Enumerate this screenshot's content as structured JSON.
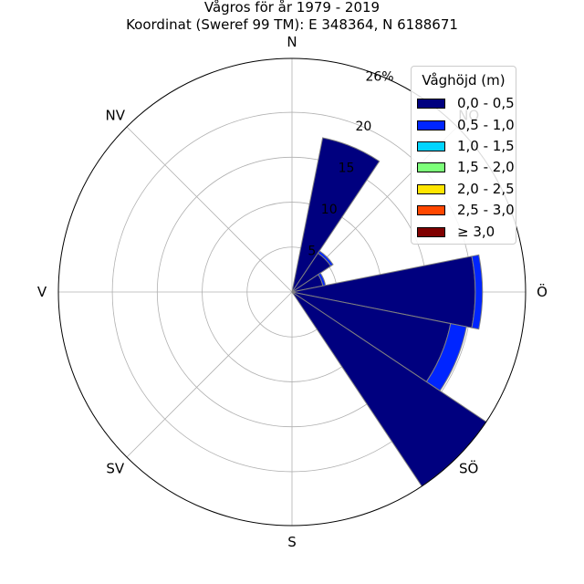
{
  "title": "Vågros för år 1979 - 2019",
  "subtitle": "Koordinat (Sweref 99 TM): E 348364, N 6188671",
  "legend": {
    "title": "Våghöjd (m)",
    "items": [
      {
        "label": "0,0 - 0,5",
        "color": "#00007f"
      },
      {
        "label": "0,5 - 1,0",
        "color": "#0025ff"
      },
      {
        "label": "1,0 - 1,5",
        "color": "#00d4ff"
      },
      {
        "label": "1,5 - 2,0",
        "color": "#7dff7a"
      },
      {
        "label": "2,0 - 2,5",
        "color": "#ffe500"
      },
      {
        "label": "2,5 - 3,0",
        "color": "#ff4700"
      },
      {
        "label": "≥ 3,0",
        "color": "#7f0000"
      }
    ]
  },
  "chart_data": {
    "type": "polar-bar",
    "title": "Vågros för år 1979 - 2019",
    "subtitle": "Koordinat (Sweref 99 TM): E 348364, N 6188671",
    "rmax": 26,
    "rticks": [
      5,
      10,
      15,
      20
    ],
    "rmax_label": "26%",
    "direction_labels": [
      "N",
      "NO",
      "Ö",
      "SÖ",
      "S",
      "SV",
      "V",
      "NV"
    ],
    "sector_width_deg": 22.5,
    "series_names": [
      "0,0 - 0,5",
      "0,5 - 1,0",
      "1,0 - 1,5",
      "1,5 - 2,0",
      "2,0 - 2,5",
      "2,5 - 3,0",
      "≥ 3,0"
    ],
    "sectors": [
      {
        "direction_deg": 22.5,
        "values": [
          17.5,
          0,
          0,
          0,
          0,
          0,
          0
        ]
      },
      {
        "direction_deg": 45,
        "values": [
          5.2,
          0.3,
          0,
          0,
          0,
          0,
          0
        ]
      },
      {
        "direction_deg": 67.5,
        "values": [
          3.5,
          0.3,
          0,
          0,
          0,
          0,
          0
        ]
      },
      {
        "direction_deg": 90,
        "values": [
          20.4,
          0.8,
          0,
          0,
          0,
          0,
          0
        ]
      },
      {
        "direction_deg": 112.5,
        "values": [
          18.0,
          1.8,
          0,
          0,
          0,
          0,
          0
        ]
      },
      {
        "direction_deg": 135,
        "values": [
          26.0,
          0,
          0,
          0,
          0,
          0,
          0
        ]
      }
    ]
  }
}
